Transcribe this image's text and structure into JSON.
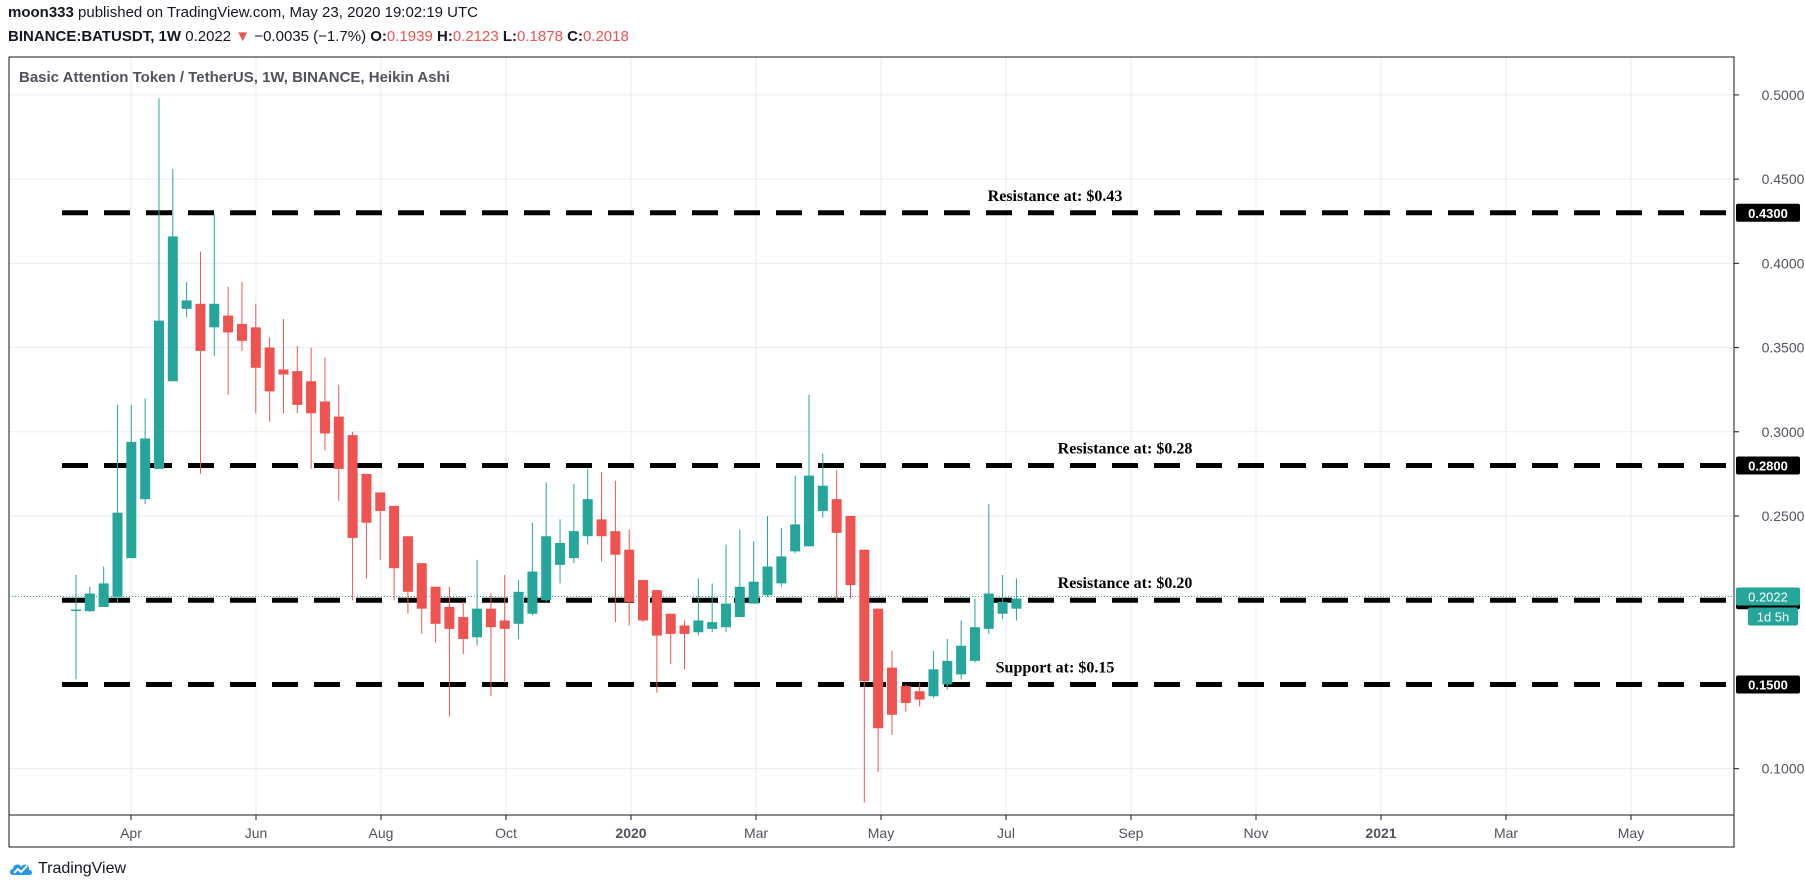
{
  "header": {
    "author": "moon333",
    "published_text": "published on TradingView.com, May 23, 2020 19:02:19 UTC",
    "symbol": "BINANCE:BATUSDT, 1W",
    "last": "0.2022",
    "change_arrow": "▼",
    "change": "−0.0035 (−1.7%)",
    "o_label": "O:",
    "o_value": "0.1939",
    "h_label": "H:",
    "h_value": "0.2123",
    "l_label": "L:",
    "l_value": "0.1878",
    "c_label": "C:",
    "c_value": "0.2018"
  },
  "footer": {
    "brand": "TradingView"
  },
  "colors": {
    "up": "#26a69a",
    "down": "#ef5350",
    "grid": "#e6eef3",
    "level": "#000000",
    "last_price": "#26a69a"
  },
  "chart_data": {
    "type": "candlestick",
    "title": "Basic Attention Token / TetherUS, 1W, BINANCE, Heikin Ashi",
    "ylim": [
      0.0725,
      0.5225
    ],
    "y_ticks": [
      "0.5000",
      "0.4500",
      "0.4000",
      "0.3500",
      "0.3000",
      "0.2500",
      "0.1000"
    ],
    "x_ticks": [
      "Apr",
      "Jun",
      "Aug",
      "Oct",
      "2020",
      "Mar",
      "May",
      "Jul",
      "Sep",
      "Nov",
      "2021",
      "Mar",
      "May"
    ],
    "x_ticks_bold": [
      "2020",
      "2021"
    ],
    "grid": true,
    "levels": [
      {
        "value": 0.43,
        "tag": "0.4300",
        "label": "Resistance at: $0.43"
      },
      {
        "value": 0.28,
        "tag": "0.2800",
        "label": "Resistance at: $0.28"
      },
      {
        "value": 0.2,
        "tag": "0.2000",
        "label": "Resistance at: $0.20"
      },
      {
        "value": 0.15,
        "tag": "0.1500",
        "label": "Support at: $0.15"
      }
    ],
    "last_price": {
      "value": 0.2022,
      "label": "0.2022",
      "countdown": "1d 5h"
    },
    "candles": [
      {
        "o": 0.1937,
        "h": 0.215,
        "l": 0.153,
        "c": 0.1945
      },
      {
        "o": 0.1935,
        "h": 0.208,
        "l": 0.193,
        "c": 0.204
      },
      {
        "o": 0.196,
        "h": 0.22,
        "l": 0.196,
        "c": 0.21
      },
      {
        "o": 0.202,
        "h": 0.316,
        "l": 0.198,
        "c": 0.252
      },
      {
        "o": 0.225,
        "h": 0.316,
        "l": 0.225,
        "c": 0.294
      },
      {
        "o": 0.26,
        "h": 0.32,
        "l": 0.257,
        "c": 0.296
      },
      {
        "o": 0.278,
        "h": 0.498,
        "l": 0.278,
        "c": 0.366
      },
      {
        "o": 0.33,
        "h": 0.456,
        "l": 0.33,
        "c": 0.416
      },
      {
        "o": 0.373,
        "h": 0.389,
        "l": 0.368,
        "c": 0.378
      },
      {
        "o": 0.376,
        "h": 0.407,
        "l": 0.275,
        "c": 0.348
      },
      {
        "o": 0.362,
        "h": 0.429,
        "l": 0.345,
        "c": 0.376
      },
      {
        "o": 0.369,
        "h": 0.386,
        "l": 0.322,
        "c": 0.359
      },
      {
        "o": 0.364,
        "h": 0.389,
        "l": 0.348,
        "c": 0.354
      },
      {
        "o": 0.362,
        "h": 0.376,
        "l": 0.311,
        "c": 0.338
      },
      {
        "o": 0.35,
        "h": 0.356,
        "l": 0.306,
        "c": 0.324
      },
      {
        "o": 0.337,
        "h": 0.367,
        "l": 0.311,
        "c": 0.334
      },
      {
        "o": 0.336,
        "h": 0.351,
        "l": 0.311,
        "c": 0.316
      },
      {
        "o": 0.33,
        "h": 0.35,
        "l": 0.278,
        "c": 0.311
      },
      {
        "o": 0.318,
        "h": 0.344,
        "l": 0.289,
        "c": 0.299
      },
      {
        "o": 0.309,
        "h": 0.328,
        "l": 0.259,
        "c": 0.278
      },
      {
        "o": 0.298,
        "h": 0.3,
        "l": 0.2,
        "c": 0.237
      },
      {
        "o": 0.275,
        "h": 0.275,
        "l": 0.213,
        "c": 0.246
      },
      {
        "o": 0.264,
        "h": 0.264,
        "l": 0.224,
        "c": 0.253
      },
      {
        "o": 0.256,
        "h": 0.256,
        "l": 0.2,
        "c": 0.219
      },
      {
        "o": 0.238,
        "h": 0.238,
        "l": 0.192,
        "c": 0.205
      },
      {
        "o": 0.222,
        "h": 0.222,
        "l": 0.18,
        "c": 0.195
      },
      {
        "o": 0.208,
        "h": 0.208,
        "l": 0.175,
        "c": 0.186
      },
      {
        "o": 0.196,
        "h": 0.208,
        "l": 0.131,
        "c": 0.183
      },
      {
        "o": 0.19,
        "h": 0.199,
        "l": 0.168,
        "c": 0.177
      },
      {
        "o": 0.178,
        "h": 0.224,
        "l": 0.173,
        "c": 0.195
      },
      {
        "o": 0.195,
        "h": 0.204,
        "l": 0.143,
        "c": 0.184
      },
      {
        "o": 0.188,
        "h": 0.215,
        "l": 0.151,
        "c": 0.183
      },
      {
        "o": 0.186,
        "h": 0.212,
        "l": 0.177,
        "c": 0.205
      },
      {
        "o": 0.192,
        "h": 0.246,
        "l": 0.191,
        "c": 0.217
      },
      {
        "o": 0.2,
        "h": 0.27,
        "l": 0.199,
        "c": 0.238
      },
      {
        "o": 0.221,
        "h": 0.248,
        "l": 0.21,
        "c": 0.234
      },
      {
        "o": 0.225,
        "h": 0.269,
        "l": 0.222,
        "c": 0.241
      },
      {
        "o": 0.238,
        "h": 0.278,
        "l": 0.233,
        "c": 0.26
      },
      {
        "o": 0.248,
        "h": 0.276,
        "l": 0.223,
        "c": 0.238
      },
      {
        "o": 0.241,
        "h": 0.271,
        "l": 0.187,
        "c": 0.227
      },
      {
        "o": 0.23,
        "h": 0.242,
        "l": 0.185,
        "c": 0.199
      },
      {
        "o": 0.212,
        "h": 0.212,
        "l": 0.187,
        "c": 0.188
      },
      {
        "o": 0.206,
        "h": 0.206,
        "l": 0.145,
        "c": 0.179
      },
      {
        "o": 0.192,
        "h": 0.192,
        "l": 0.162,
        "c": 0.18
      },
      {
        "o": 0.185,
        "h": 0.188,
        "l": 0.159,
        "c": 0.18
      },
      {
        "o": 0.181,
        "h": 0.213,
        "l": 0.179,
        "c": 0.188
      },
      {
        "o": 0.183,
        "h": 0.21,
        "l": 0.181,
        "c": 0.187
      },
      {
        "o": 0.184,
        "h": 0.233,
        "l": 0.181,
        "c": 0.198
      },
      {
        "o": 0.19,
        "h": 0.242,
        "l": 0.19,
        "c": 0.208
      },
      {
        "o": 0.198,
        "h": 0.235,
        "l": 0.198,
        "c": 0.211
      },
      {
        "o": 0.203,
        "h": 0.25,
        "l": 0.202,
        "c": 0.22
      },
      {
        "o": 0.21,
        "h": 0.243,
        "l": 0.208,
        "c": 0.226
      },
      {
        "o": 0.229,
        "h": 0.274,
        "l": 0.228,
        "c": 0.245
      },
      {
        "o": 0.232,
        "h": 0.322,
        "l": 0.232,
        "c": 0.274
      },
      {
        "o": 0.253,
        "h": 0.287,
        "l": 0.249,
        "c": 0.268
      },
      {
        "o": 0.26,
        "h": 0.277,
        "l": 0.2,
        "c": 0.24
      },
      {
        "o": 0.25,
        "h": 0.25,
        "l": 0.201,
        "c": 0.209
      },
      {
        "o": 0.23,
        "h": 0.23,
        "l": 0.08,
        "c": 0.152
      },
      {
        "o": 0.195,
        "h": 0.195,
        "l": 0.098,
        "c": 0.124
      },
      {
        "o": 0.16,
        "h": 0.17,
        "l": 0.12,
        "c": 0.132
      },
      {
        "o": 0.149,
        "h": 0.15,
        "l": 0.134,
        "c": 0.139
      },
      {
        "o": 0.146,
        "h": 0.151,
        "l": 0.137,
        "c": 0.141
      },
      {
        "o": 0.143,
        "h": 0.17,
        "l": 0.142,
        "c": 0.159
      },
      {
        "o": 0.15,
        "h": 0.177,
        "l": 0.147,
        "c": 0.164
      },
      {
        "o": 0.156,
        "h": 0.188,
        "l": 0.153,
        "c": 0.173
      },
      {
        "o": 0.164,
        "h": 0.201,
        "l": 0.163,
        "c": 0.184
      },
      {
        "o": 0.183,
        "h": 0.257,
        "l": 0.18,
        "c": 0.204
      },
      {
        "o": 0.192,
        "h": 0.215,
        "l": 0.189,
        "c": 0.199
      },
      {
        "o": 0.195,
        "h": 0.213,
        "l": 0.188,
        "c": 0.201
      }
    ]
  }
}
